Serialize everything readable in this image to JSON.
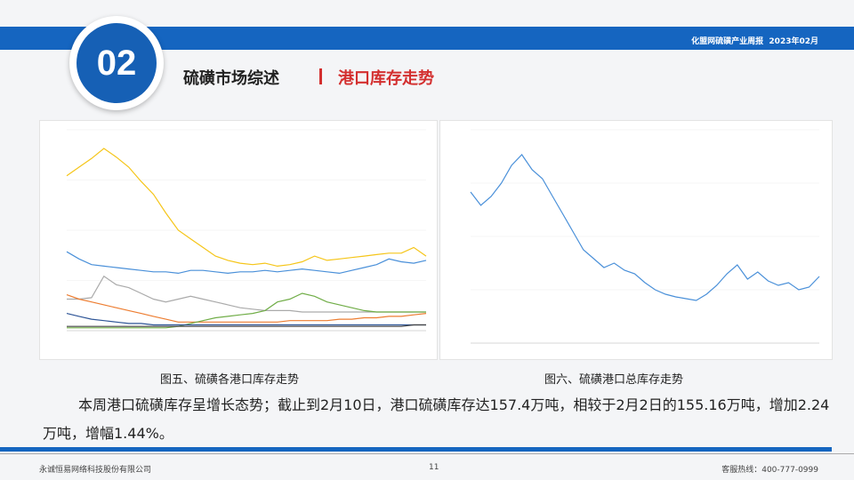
{
  "header": {
    "report_name": "化盟网硫磺产业周报",
    "report_date": "2023年02月",
    "badge_number": "02",
    "title": "硫磺市场综述",
    "subtitle": "港口库存走势"
  },
  "figures": {
    "caption_left": "图五、硫磺各港口库存走势",
    "caption_right": "图六、硫磺港口总库存走势"
  },
  "body": {
    "paragraph": "本周港口硫磺库存呈增长态势；截止到2月10日，港口硫磺库存达157.4万吨，相较于2月2日的155.16万吨，增加2.24万吨，增幅1.44%。"
  },
  "footer": {
    "company": "永诚恒易网络科技股份有限公司",
    "page": "11",
    "hotline": "客服热线：400-777-0999"
  },
  "colors": {
    "brand_blue": "#1565c0",
    "accent_red": "#d32f2f"
  },
  "chart_data": [
    {
      "type": "line",
      "ylim": [
        0,
        140
      ],
      "series": [
        {
          "color": "#f5c518",
          "values": [
            108,
            114,
            120,
            127,
            121,
            114,
            104,
            95,
            82,
            70,
            64,
            58,
            52,
            49,
            47,
            46,
            47,
            45,
            46,
            48,
            52,
            49,
            50,
            51,
            52,
            53,
            54,
            54,
            58,
            52
          ]
        },
        {
          "color": "#4a90d9",
          "values": [
            55,
            50,
            46,
            45,
            44,
            43,
            42,
            41,
            41,
            40,
            42,
            42,
            41,
            40,
            41,
            41,
            42,
            41,
            42,
            43,
            42,
            41,
            40,
            42,
            44,
            46,
            50,
            48,
            47,
            49
          ]
        },
        {
          "color": "#aaaaaa",
          "values": [
            22,
            22,
            23,
            38,
            32,
            30,
            26,
            22,
            20,
            22,
            24,
            22,
            20,
            18,
            16,
            15,
            14,
            14,
            14,
            13,
            13,
            13,
            13,
            13,
            13,
            13,
            13,
            13,
            13,
            13
          ]
        },
        {
          "color": "#ed7d31",
          "values": [
            25,
            22,
            20,
            18,
            16,
            14,
            12,
            10,
            8,
            6,
            6,
            6,
            6,
            6,
            6,
            6,
            6,
            6,
            7,
            7,
            7,
            7,
            8,
            8,
            9,
            9,
            10,
            10,
            11,
            12
          ]
        },
        {
          "color": "#70ad47",
          "values": [
            2,
            2,
            2,
            2,
            2,
            2,
            2,
            2,
            2,
            3,
            5,
            7,
            9,
            10,
            11,
            12,
            14,
            20,
            22,
            26,
            24,
            20,
            18,
            16,
            14,
            13,
            13,
            13,
            13,
            13
          ]
        },
        {
          "color": "#2e5597",
          "values": [
            12,
            10,
            8,
            7,
            6,
            5,
            5,
            4,
            4,
            4,
            4,
            4,
            4,
            4,
            4,
            4,
            4,
            4,
            4,
            4,
            4,
            4,
            4,
            4,
            4,
            4,
            4,
            4,
            4,
            4
          ]
        },
        {
          "color": "#444444",
          "values": [
            3,
            3,
            3,
            3,
            3,
            3,
            3,
            3,
            3,
            3,
            3,
            3,
            3,
            3,
            3,
            3,
            3,
            3,
            3,
            3,
            3,
            3,
            3,
            3,
            3,
            3,
            3,
            3,
            4,
            4
          ]
        }
      ]
    },
    {
      "type": "line",
      "ylim": [
        100,
        340
      ],
      "series": [
        {
          "color": "#4a90d9",
          "values": [
            270,
            255,
            265,
            280,
            300,
            312,
            295,
            285,
            265,
            245,
            225,
            205,
            195,
            185,
            190,
            182,
            178,
            168,
            160,
            155,
            152,
            150,
            148,
            155,
            165,
            178,
            188,
            172,
            180,
            170,
            165,
            168,
            160,
            163,
            175
          ]
        }
      ]
    }
  ]
}
